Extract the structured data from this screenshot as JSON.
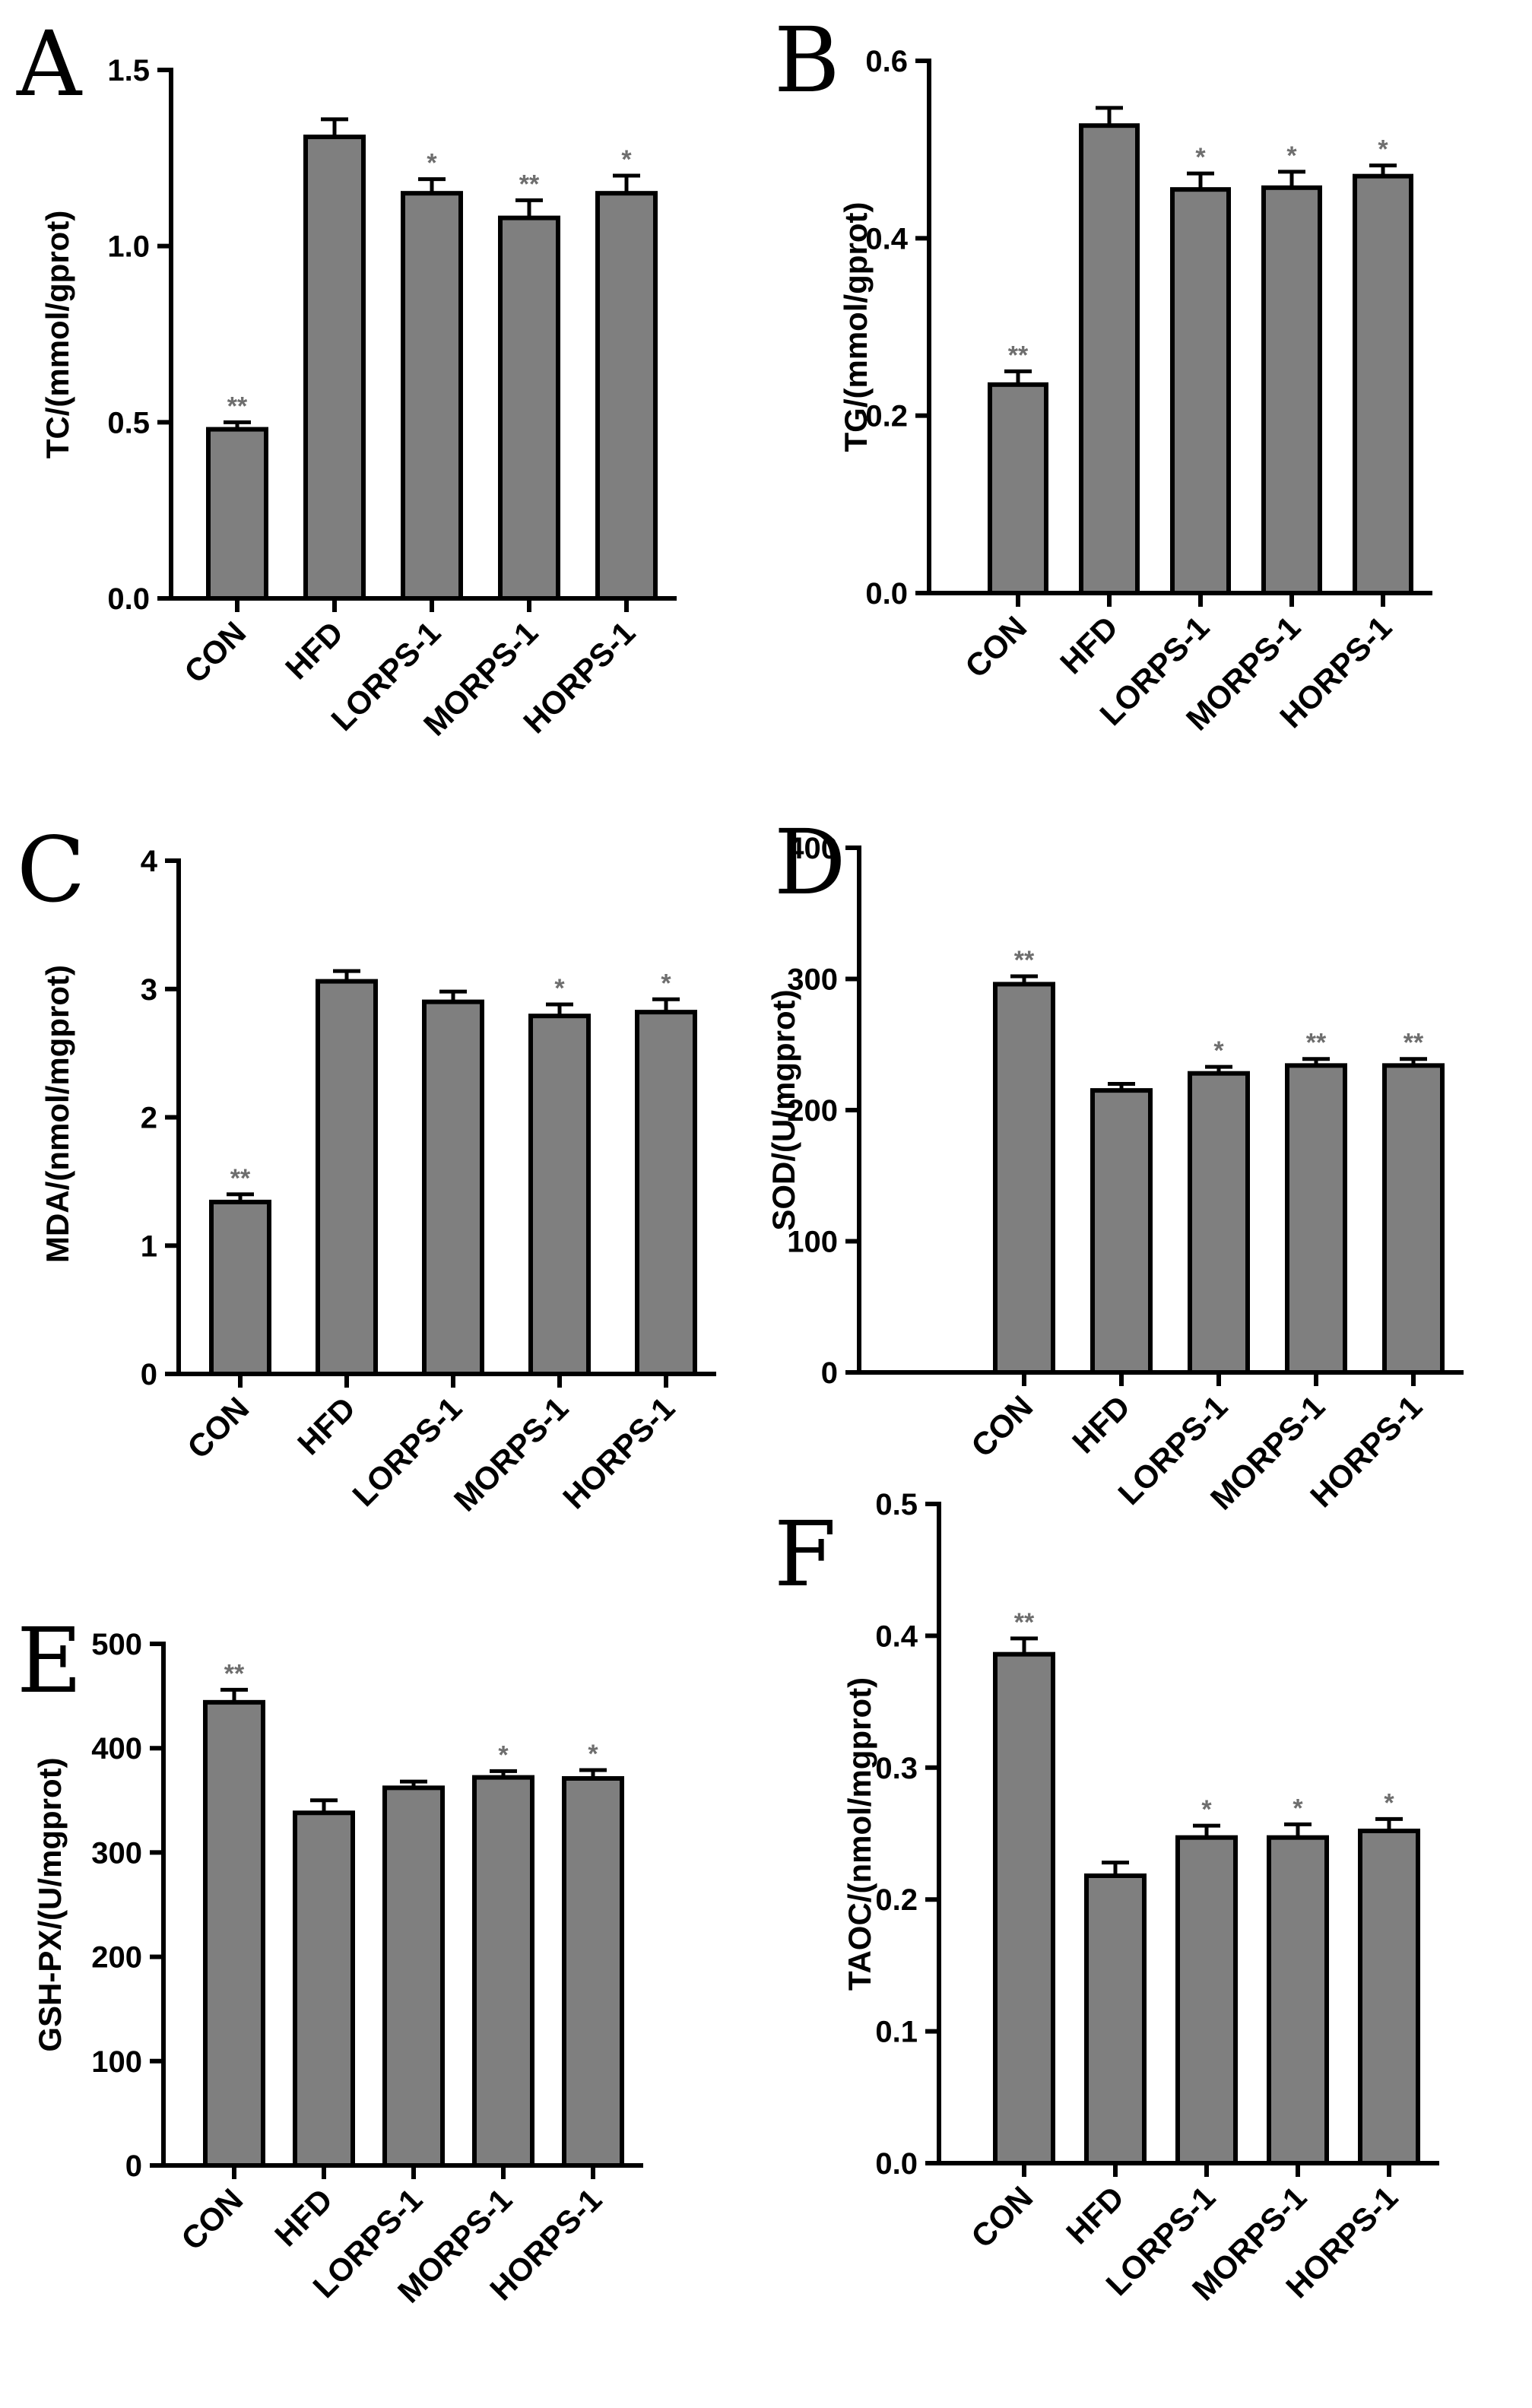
{
  "chart_data": [
    {
      "type": "bar",
      "panel": "A",
      "categories": [
        "CON",
        "HFD",
        "LORPS-1",
        "MORPS-1",
        "HORPS-1"
      ],
      "values": [
        0.48,
        1.31,
        1.15,
        1.08,
        1.15
      ],
      "errors": [
        0.02,
        0.05,
        0.04,
        0.05,
        0.05
      ],
      "significance": [
        "**",
        "",
        "*",
        "**",
        "*"
      ],
      "ylabel": "TC/(mmol/gprot)",
      "ylim": [
        0,
        1.5
      ],
      "yticks": [
        0,
        0.5,
        1.0,
        1.5
      ],
      "ytick_labels": [
        "0.0",
        "0.5",
        "1.0",
        "1.5"
      ]
    },
    {
      "type": "bar",
      "panel": "B",
      "categories": [
        "CON",
        "HFD",
        "LORPS-1",
        "MORPS-1",
        "HORPS-1"
      ],
      "values": [
        0.235,
        0.527,
        0.455,
        0.457,
        0.47
      ],
      "errors": [
        0.015,
        0.02,
        0.018,
        0.018,
        0.012
      ],
      "significance": [
        "**",
        "",
        "*",
        "*",
        "*"
      ],
      "ylabel": "TG/(mmol/gprot)",
      "ylim": [
        0,
        0.6
      ],
      "yticks": [
        0,
        0.2,
        0.4,
        0.6
      ],
      "ytick_labels": [
        "0.0",
        "0.2",
        "0.4",
        "0.6"
      ]
    },
    {
      "type": "bar",
      "panel": "C",
      "categories": [
        "CON",
        "HFD",
        "LORPS-1",
        "MORPS-1",
        "HORPS-1"
      ],
      "values": [
        1.34,
        3.06,
        2.9,
        2.79,
        2.82
      ],
      "errors": [
        0.06,
        0.08,
        0.08,
        0.09,
        0.1
      ],
      "significance": [
        "**",
        "",
        "",
        "*",
        "*"
      ],
      "ylabel": "MDA/(nmol/mgprot)",
      "ylim": [
        0,
        4
      ],
      "yticks": [
        0,
        1,
        2,
        3,
        4
      ],
      "ytick_labels": [
        "0",
        "1",
        "2",
        "3",
        "4"
      ]
    },
    {
      "type": "bar",
      "panel": "D",
      "categories": [
        "CON",
        "HFD",
        "LORPS-1",
        "MORPS-1",
        "HORPS-1"
      ],
      "values": [
        296,
        215,
        228,
        234,
        234
      ],
      "errors": [
        6,
        5,
        5,
        5,
        5
      ],
      "significance": [
        "**",
        "",
        "*",
        "**",
        "**"
      ],
      "ylabel": "SOD/(U/mgprot)",
      "ylim": [
        0,
        400
      ],
      "yticks": [
        0,
        100,
        200,
        300,
        400
      ],
      "ytick_labels": [
        "0",
        "100",
        "200",
        "300",
        "400"
      ]
    },
    {
      "type": "bar",
      "panel": "E",
      "categories": [
        "CON",
        "HFD",
        "LORPS-1",
        "MORPS-1",
        "HORPS-1"
      ],
      "values": [
        444,
        338,
        362,
        372,
        371
      ],
      "errors": [
        12,
        12,
        6,
        6,
        8
      ],
      "significance": [
        "**",
        "",
        "",
        "*",
        "*"
      ],
      "ylabel": "GSH-PX/(U/mgprot)",
      "ylim": [
        0,
        500
      ],
      "yticks": [
        0,
        100,
        200,
        300,
        400,
        500
      ],
      "ytick_labels": [
        "0",
        "100",
        "200",
        "300",
        "400",
        "500"
      ]
    },
    {
      "type": "bar",
      "panel": "F",
      "categories": [
        "CON",
        "HFD",
        "LORPS-1",
        "MORPS-1",
        "HORPS-1"
      ],
      "values": [
        0.386,
        0.218,
        0.247,
        0.247,
        0.252
      ],
      "errors": [
        0.012,
        0.01,
        0.009,
        0.01,
        0.009
      ],
      "significance": [
        "**",
        "",
        "*",
        "*",
        "*"
      ],
      "ylabel": "TAOC/(nmol/mgprot)",
      "ylim": [
        0,
        0.5
      ],
      "yticks": [
        0,
        0.1,
        0.2,
        0.3,
        0.4,
        0.5
      ],
      "ytick_labels": [
        "0.0",
        "0.1",
        "0.2",
        "0.3",
        "0.4",
        "0.5"
      ]
    }
  ]
}
